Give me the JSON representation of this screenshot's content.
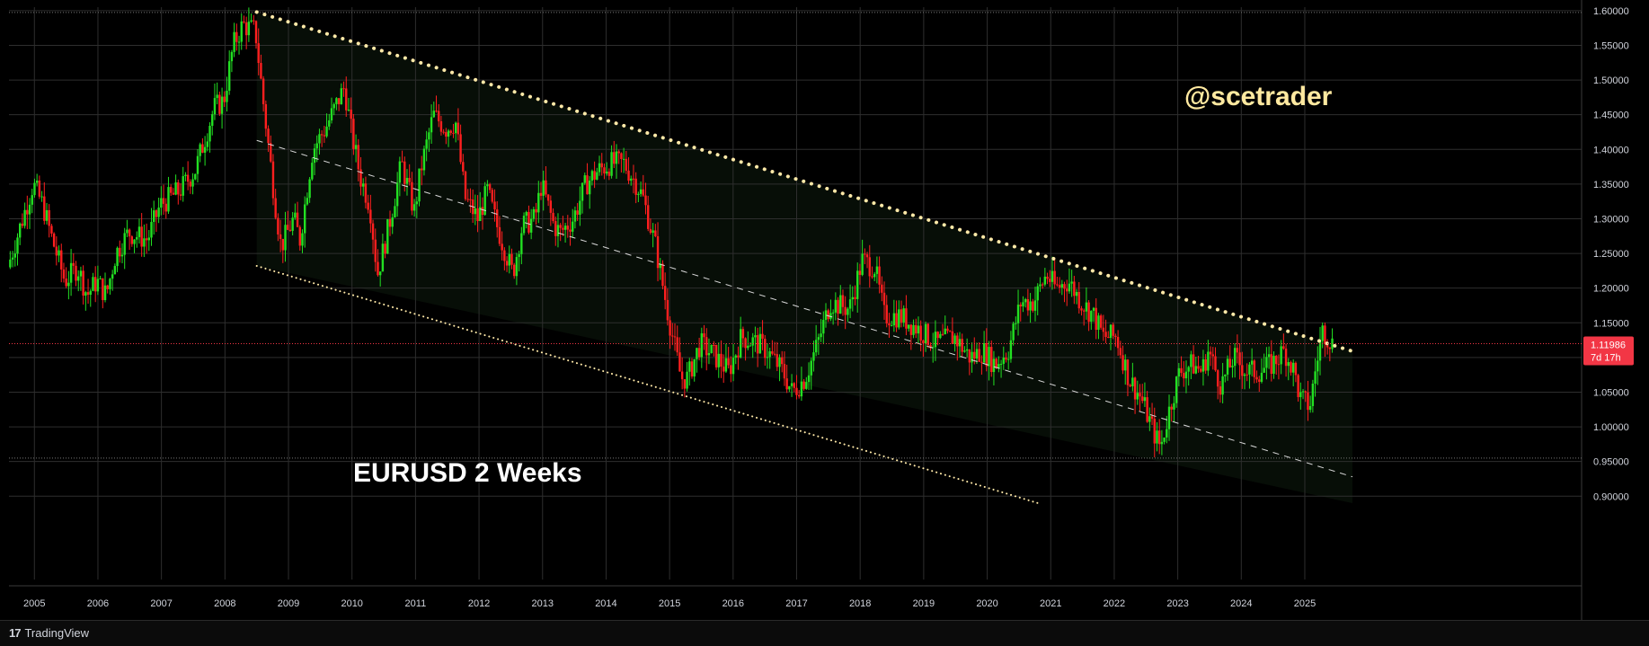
{
  "chart_data": {
    "type": "candlestick",
    "symbol_label": "EURUSD 2 Weeks",
    "watermark": "@scetrader",
    "x_ticks": [
      "2005",
      "2006",
      "2007",
      "2008",
      "2009",
      "2010",
      "2011",
      "2012",
      "2013",
      "2014",
      "2015",
      "2016",
      "2017",
      "2018",
      "2019",
      "2020",
      "2021",
      "2022",
      "2023",
      "2024",
      "2025"
    ],
    "y_ticks": [
      "0.90000",
      "0.95000",
      "1.00000",
      "1.05000",
      "1.10000",
      "1.15000",
      "1.20000",
      "1.25000",
      "1.30000",
      "1.35000",
      "1.40000",
      "1.45000",
      "1.50000",
      "1.55000",
      "1.60000"
    ],
    "ylim": [
      0.89,
      1.605
    ],
    "xlim": [
      2004.6,
      2025.75
    ],
    "last_price": "1.11986",
    "countdown": "7d 17h",
    "price_path": [
      [
        2004.6,
        1.23
      ],
      [
        2004.8,
        1.29
      ],
      [
        2005.0,
        1.35
      ],
      [
        2005.15,
        1.32
      ],
      [
        2005.3,
        1.27
      ],
      [
        2005.5,
        1.21
      ],
      [
        2005.7,
        1.23
      ],
      [
        2005.85,
        1.19
      ],
      [
        2006.0,
        1.21
      ],
      [
        2006.15,
        1.19
      ],
      [
        2006.3,
        1.25
      ],
      [
        2006.5,
        1.28
      ],
      [
        2006.8,
        1.27
      ],
      [
        2007.0,
        1.32
      ],
      [
        2007.3,
        1.34
      ],
      [
        2007.55,
        1.37
      ],
      [
        2007.85,
        1.46
      ],
      [
        2008.0,
        1.47
      ],
      [
        2008.15,
        1.55
      ],
      [
        2008.3,
        1.58
      ],
      [
        2008.5,
        1.57
      ],
      [
        2008.62,
        1.47
      ],
      [
        2008.8,
        1.33
      ],
      [
        2008.9,
        1.26
      ],
      [
        2009.1,
        1.3
      ],
      [
        2009.2,
        1.27
      ],
      [
        2009.4,
        1.4
      ],
      [
        2009.6,
        1.43
      ],
      [
        2009.9,
        1.49
      ],
      [
        2010.0,
        1.43
      ],
      [
        2010.15,
        1.36
      ],
      [
        2010.3,
        1.32
      ],
      [
        2010.42,
        1.22
      ],
      [
        2010.5,
        1.25
      ],
      [
        2010.6,
        1.29
      ],
      [
        2010.8,
        1.38
      ],
      [
        2011.0,
        1.31
      ],
      [
        2011.1,
        1.37
      ],
      [
        2011.3,
        1.45
      ],
      [
        2011.5,
        1.43
      ],
      [
        2011.65,
        1.44
      ],
      [
        2011.8,
        1.33
      ],
      [
        2012.0,
        1.3
      ],
      [
        2012.15,
        1.34
      ],
      [
        2012.3,
        1.29
      ],
      [
        2012.55,
        1.22
      ],
      [
        2012.7,
        1.29
      ],
      [
        2012.9,
        1.3
      ],
      [
        2013.0,
        1.35
      ],
      [
        2013.2,
        1.29
      ],
      [
        2013.3,
        1.28
      ],
      [
        2013.5,
        1.3
      ],
      [
        2013.7,
        1.35
      ],
      [
        2013.9,
        1.37
      ],
      [
        2014.1,
        1.38
      ],
      [
        2014.3,
        1.38
      ],
      [
        2014.5,
        1.35
      ],
      [
        2014.6,
        1.33
      ],
      [
        2014.8,
        1.26
      ],
      [
        2015.0,
        1.16
      ],
      [
        2015.2,
        1.07
      ],
      [
        2015.3,
        1.07
      ],
      [
        2015.5,
        1.12
      ],
      [
        2015.75,
        1.1
      ],
      [
        2015.95,
        1.08
      ],
      [
        2016.15,
        1.13
      ],
      [
        2016.4,
        1.12
      ],
      [
        2016.55,
        1.11
      ],
      [
        2016.8,
        1.08
      ],
      [
        2016.95,
        1.05
      ],
      [
        2017.15,
        1.07
      ],
      [
        2017.35,
        1.12
      ],
      [
        2017.55,
        1.18
      ],
      [
        2017.85,
        1.17
      ],
      [
        2018.05,
        1.24
      ],
      [
        2018.25,
        1.23
      ],
      [
        2018.4,
        1.16
      ],
      [
        2018.65,
        1.16
      ],
      [
        2018.95,
        1.14
      ],
      [
        2019.2,
        1.12
      ],
      [
        2019.5,
        1.13
      ],
      [
        2019.75,
        1.1
      ],
      [
        2019.95,
        1.11
      ],
      [
        2020.15,
        1.09
      ],
      [
        2020.35,
        1.11
      ],
      [
        2020.55,
        1.18
      ],
      [
        2020.75,
        1.18
      ],
      [
        2020.95,
        1.22
      ],
      [
        2021.1,
        1.2
      ],
      [
        2021.3,
        1.21
      ],
      [
        2021.5,
        1.18
      ],
      [
        2021.7,
        1.16
      ],
      [
        2021.85,
        1.13
      ],
      [
        2022.05,
        1.13
      ],
      [
        2022.25,
        1.07
      ],
      [
        2022.45,
        1.04
      ],
      [
        2022.65,
        0.99
      ],
      [
        2022.75,
        0.97
      ],
      [
        2022.9,
        1.03
      ],
      [
        2023.05,
        1.08
      ],
      [
        2023.25,
        1.09
      ],
      [
        2023.4,
        1.08
      ],
      [
        2023.5,
        1.11
      ],
      [
        2023.7,
        1.06
      ],
      [
        2023.9,
        1.1
      ],
      [
        2024.1,
        1.08
      ],
      [
        2024.3,
        1.08
      ],
      [
        2024.5,
        1.09
      ],
      [
        2024.7,
        1.11
      ],
      [
        2024.85,
        1.08
      ],
      [
        2024.95,
        1.04
      ],
      [
        2025.1,
        1.03
      ],
      [
        2025.2,
        1.09
      ],
      [
        2025.3,
        1.14
      ],
      [
        2025.38,
        1.13
      ],
      [
        2025.45,
        1.12
      ]
    ],
    "lines": [
      {
        "name": "upper",
        "style": "thick-dots",
        "color": "#ffe9a8",
        "x1": 2008.5,
        "y1": 1.598,
        "x2": 2025.75,
        "y2": 1.109
      },
      {
        "name": "middle",
        "style": "dashed",
        "color": "#d9d9d9",
        "x1": 2008.5,
        "y1": 1.413,
        "x2": 2025.75,
        "y2": 0.928
      },
      {
        "name": "lower",
        "style": "fine-dots",
        "color": "#ffe9a8",
        "x1": 2008.5,
        "y1": 1.232,
        "x2": 2020.8,
        "y2": 0.89
      }
    ],
    "channel_fill": "#0c1a0c",
    "colors": {
      "up": "#22e022",
      "down": "#ff1f1f",
      "grid": "#2e2e2e",
      "axis_text": "#d1d4dc",
      "price_tag": "#f23645",
      "watermark": "#ffe9a0",
      "label": "#ffffff"
    }
  },
  "footer": {
    "brand": "TradingView"
  }
}
